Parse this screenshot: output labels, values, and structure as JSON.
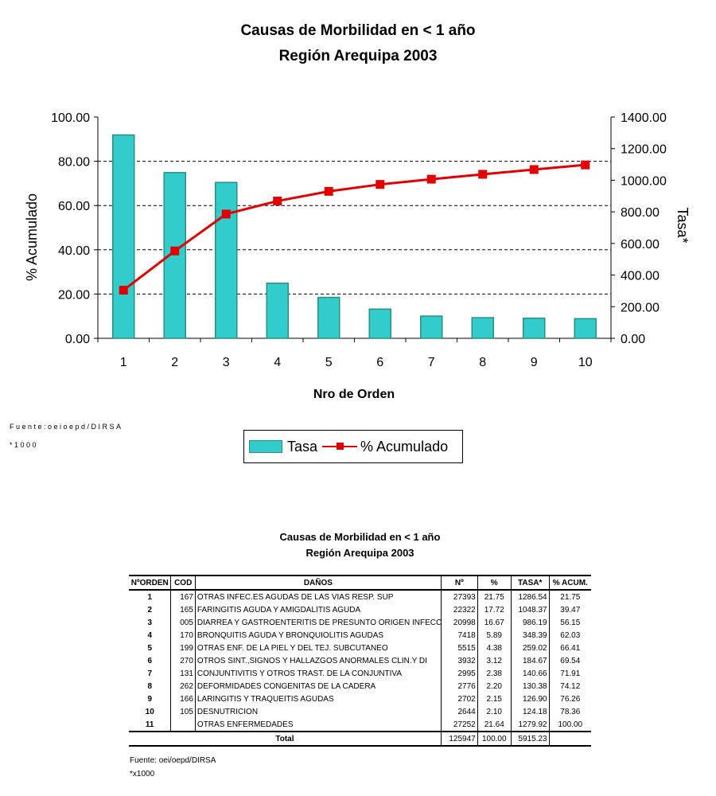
{
  "chart_data": {
    "type": "bar+line",
    "title": "Causas de Morbilidad en < 1 año",
    "subtitle": "Región Arequipa 2003",
    "xlabel": "Nro de Orden",
    "ylabel_left": "% Acumulado",
    "ylabel_right": "Tasa*",
    "categories": [
      "1",
      "2",
      "3",
      "4",
      "5",
      "6",
      "7",
      "8",
      "9",
      "10"
    ],
    "ylim_left": [
      0,
      100
    ],
    "ylim_right": [
      0,
      1400
    ],
    "yticks_left": [
      "0.00",
      "20.00",
      "40.00",
      "60.00",
      "80.00",
      "100.00"
    ],
    "yticks_right": [
      "0.00",
      "200.00",
      "400.00",
      "600.00",
      "800.00",
      "1000.00",
      "1200.00",
      "1400.00"
    ],
    "grid": "horizontal dashed",
    "legend_placement": "bottom",
    "series": [
      {
        "name": "Tasa",
        "type": "bar",
        "axis": "right",
        "color": "#33cccc",
        "values": [
          1286.54,
          1048.37,
          986.19,
          348.39,
          259.02,
          184.67,
          140.66,
          130.38,
          126.9,
          124.18
        ]
      },
      {
        "name": "% Acumulado",
        "type": "line",
        "axis": "left",
        "color": "#e00000",
        "values": [
          21.75,
          39.47,
          56.15,
          62.03,
          66.41,
          69.54,
          71.91,
          74.12,
          76.26,
          78.36
        ]
      }
    ]
  },
  "footnotes": {
    "source": "Fuente:oeioepd/DIRSA",
    "scale": "*1000"
  },
  "table": {
    "title": "Causas de Morbilidad en < 1 año",
    "subtitle": "Región Arequipa 2003",
    "headers": [
      "NºORDEN",
      "COD",
      "DAÑOS",
      "Nº",
      "%",
      "TASA*",
      "% ACUM."
    ],
    "rows": [
      [
        "1",
        "167",
        "OTRAS INFEC.ES AGUDAS DE LAS VIAS RESP. SUP",
        "27393",
        "21.75",
        "1286.54",
        "21.75"
      ],
      [
        "2",
        "165",
        "FARINGITIS AGUDA Y AMIGDALITIS AGUDA",
        "22322",
        "17.72",
        "1048.37",
        "39.47"
      ],
      [
        "3",
        "005",
        "DIARREA Y GASTROENTERITIS DE PRESUNTO ORIGEN INFECC",
        "20998",
        "16.67",
        "986.19",
        "56.15"
      ],
      [
        "4",
        "170",
        "BRONQUITIS AGUDA Y BRONQUIOLITIS AGUDAS",
        "7418",
        "5.89",
        "348.39",
        "62.03"
      ],
      [
        "5",
        "199",
        "OTRAS ENF. DE LA PIEL Y DEL TEJ. SUBCUTANEO",
        "5515",
        "4.38",
        "259.02",
        "66.41"
      ],
      [
        "6",
        "270",
        "OTROS SINT.,SIGNOS Y HALLAZGOS ANORMALES CLIN.Y DI",
        "3932",
        "3.12",
        "184.67",
        "69.54"
      ],
      [
        "7",
        "131",
        "CONJUNTIVITIS Y OTROS TRAST. DE LA CONJUNTIVA",
        "2995",
        "2.38",
        "140.66",
        "71.91"
      ],
      [
        "8",
        "262",
        "DEFORMIDADES CONGENITAS DE LA CADERA",
        "2776",
        "2.20",
        "130.38",
        "74.12"
      ],
      [
        "9",
        "166",
        "LARINGITIS Y TRAQUEITIS AGUDAS",
        "2702",
        "2.15",
        "126.90",
        "76.26"
      ],
      [
        "10",
        "105",
        "DESNUTRICION",
        "2644",
        "2.10",
        "124.18",
        "78.36"
      ],
      [
        "11",
        "",
        "OTRAS ENFERMEDADES",
        "27252",
        "21.64",
        "1279.92",
        "100.00"
      ]
    ],
    "total": {
      "label": "Total",
      "n": "125947",
      "pct": "100.00",
      "tasa": "5915.23",
      "acum": ""
    },
    "source": "Fuente: oei/oepd/DIRSA",
    "note": "*x1000"
  }
}
